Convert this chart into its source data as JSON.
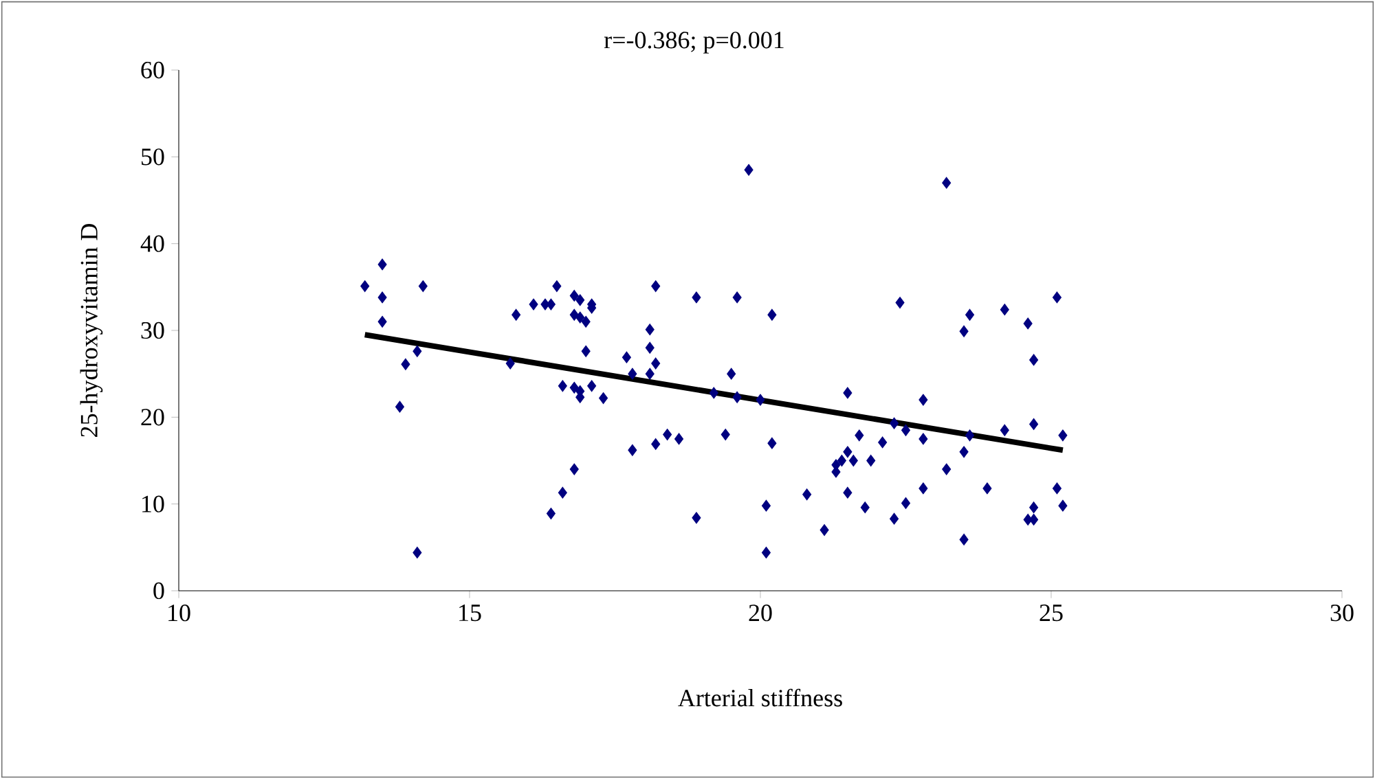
{
  "chart_data": {
    "type": "scatter",
    "title": "r=-0.386; p=0.001",
    "xlabel": "Arterial stiffness",
    "ylabel": "25-hydroxyvitamin D",
    "xlim": [
      10,
      30
    ],
    "xticks": [
      10,
      15,
      20,
      25,
      30
    ],
    "ylim": [
      0,
      60
    ],
    "yticks": [
      0,
      10,
      20,
      30,
      40,
      50,
      60
    ],
    "grid": false,
    "marker": "diamond",
    "series": [
      {
        "color": "#000080",
        "x": [
          13.2,
          13.5,
          13.5,
          13.5,
          13.8,
          13.9,
          14.1,
          14.1,
          14.2,
          15.7,
          15.8,
          16.1,
          16.3,
          16.4,
          16.5,
          16.8,
          16.9,
          16.8,
          16.9,
          17.0,
          17.1,
          17.1,
          17.0,
          16.6,
          16.8,
          16.9,
          16.9,
          17.1,
          17.3,
          16.6,
          16.8,
          16.4,
          17.7,
          17.8,
          18.1,
          18.1,
          18.1,
          18.2,
          18.2,
          17.8,
          18.2,
          18.4,
          18.6,
          18.9,
          18.9,
          19.2,
          19.4,
          19.5,
          19.6,
          19.6,
          19.8,
          20.0,
          20.2,
          20.1,
          20.2,
          20.1,
          20.8,
          21.1,
          21.3,
          21.3,
          21.4,
          21.5,
          21.5,
          21.5,
          21.6,
          21.7,
          21.8,
          21.9,
          22.1,
          22.3,
          22.3,
          22.4,
          22.5,
          22.5,
          22.8,
          22.8,
          22.8,
          23.2,
          23.2,
          23.5,
          23.5,
          23.5,
          23.6,
          23.6,
          23.9,
          24.2,
          24.2,
          24.6,
          24.7,
          24.7,
          24.6,
          24.7,
          24.7,
          25.1,
          25.1,
          25.2,
          25.2
        ],
        "values": [
          35.1,
          37.6,
          33.8,
          31,
          21.2,
          26.1,
          27.6,
          4.4,
          35.1,
          26.2,
          31.8,
          33,
          33,
          33,
          35.1,
          34,
          33.5,
          31.8,
          31.5,
          31,
          33,
          32.6,
          27.6,
          23.6,
          23.4,
          22.3,
          23,
          23.6,
          22.2,
          11.3,
          14,
          8.9,
          26.9,
          25,
          30.1,
          28,
          25,
          26.2,
          35.1,
          16.2,
          16.9,
          18,
          17.5,
          8.4,
          33.8,
          22.8,
          18,
          25,
          33.8,
          22.3,
          48.5,
          22,
          31.8,
          9.8,
          17,
          4.4,
          11.1,
          7,
          13.7,
          14.5,
          15,
          16,
          11.3,
          22.8,
          15,
          17.9,
          9.6,
          15,
          17.1,
          8.3,
          19.3,
          33.2,
          18.5,
          10.1,
          22,
          17.5,
          11.8,
          14,
          47,
          16,
          5.9,
          29.9,
          31.8,
          17.9,
          11.8,
          32.4,
          18.5,
          30.8,
          26.6,
          19.2,
          8.2,
          8.2,
          9.6,
          11.8,
          33.8,
          17.9,
          9.8
        ]
      },
      {
        "type": "line",
        "color": "#000000",
        "marker": "none",
        "x": [
          13.2,
          25.2
        ],
        "values": [
          29.5,
          16.2
        ]
      }
    ]
  }
}
